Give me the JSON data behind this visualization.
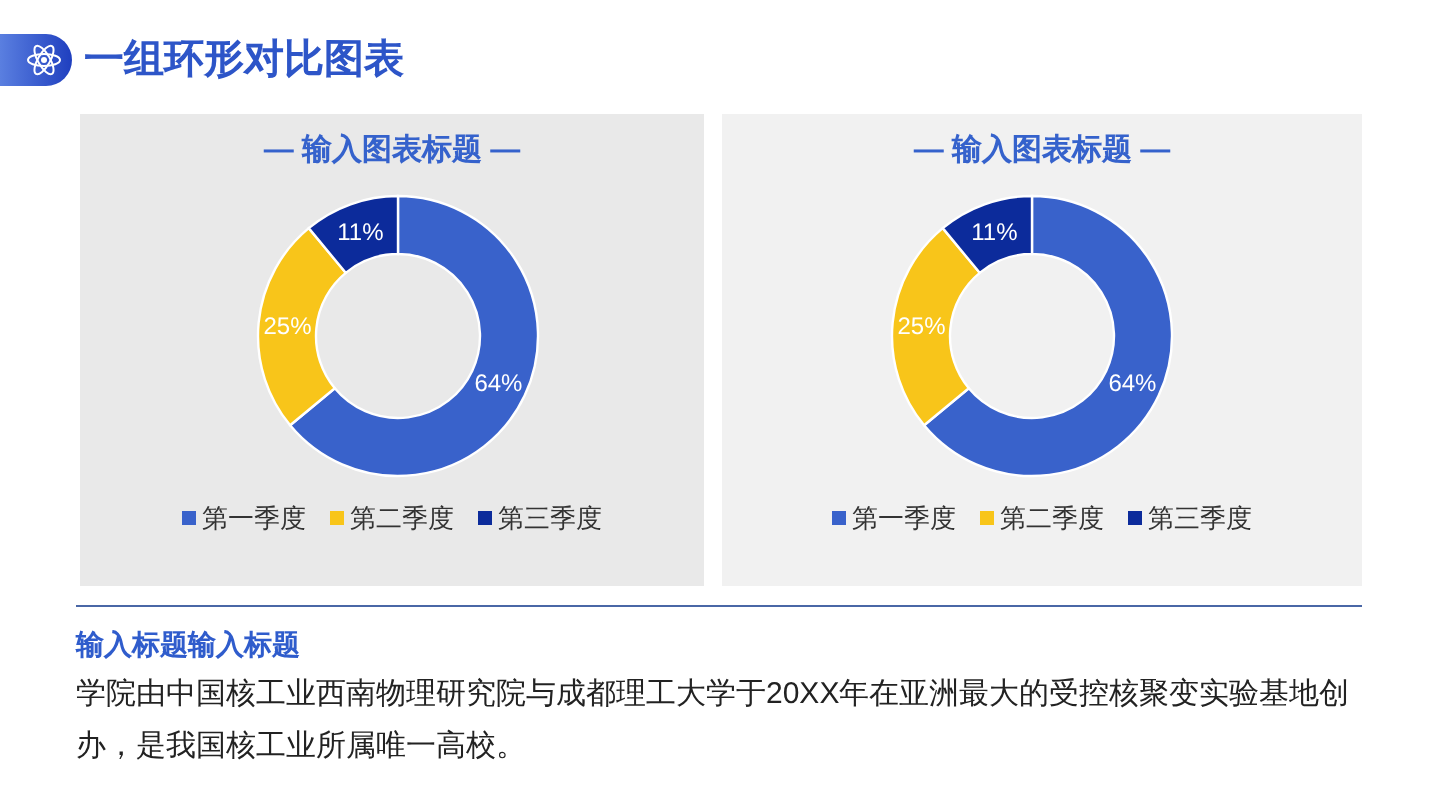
{
  "chart_data": [
    {
      "type": "other",
      "title": "一组环形对比图表"
    },
    {
      "type": "donut",
      "title": "— 输入图表标题 —",
      "categories": [
        "第一季度",
        "第二季度",
        "第三季度"
      ],
      "values": [
        64,
        25,
        11
      ],
      "colors": [
        "#3962cb",
        "#f8c51a",
        "#0c2b9b"
      ],
      "value_labels": [
        "64%",
        "25%",
        "11%"
      ],
      "legend": "bottom"
    },
    {
      "type": "donut",
      "title": "— 输入图表标题 —",
      "categories": [
        "第一季度",
        "第二季度",
        "第三季度"
      ],
      "values": [
        64,
        25,
        11
      ],
      "colors": [
        "#3962cb",
        "#f8c51a",
        "#0c2b9b"
      ],
      "value_labels": [
        "64%",
        "25%",
        "11%"
      ],
      "legend": "bottom"
    },
    {
      "type": "other",
      "title": "输入标题输入标题",
      "annotations": [
        "学院由中国核工业西南物理研究院与成都理工大学于20XX年在亚洲最大的受控核聚变实验基地创办，是我国核工业所属唯一高校。"
      ]
    }
  ]
}
